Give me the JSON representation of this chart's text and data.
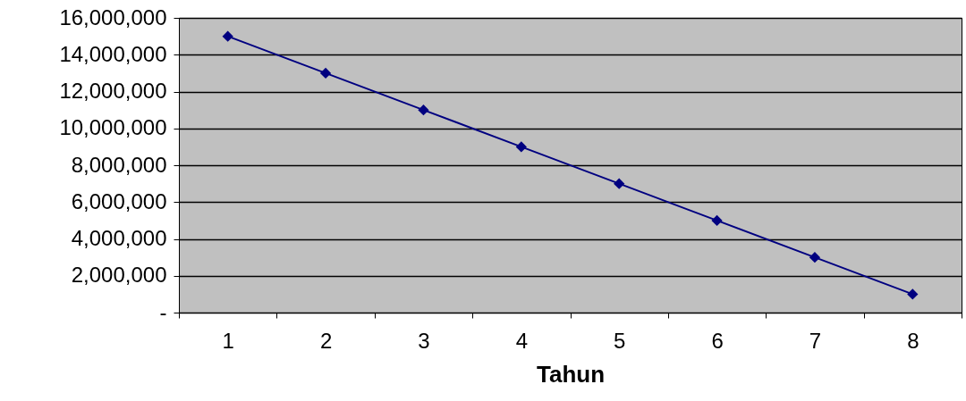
{
  "chart_data": {
    "type": "line",
    "xlabel": "Tahun",
    "categories": [
      "1",
      "2",
      "3",
      "4",
      "5",
      "6",
      "7",
      "8"
    ],
    "series": [
      {
        "color": "#000080",
        "values": [
          15000000,
          13000000,
          11000000,
          9000000,
          7000000,
          5000000,
          3000000,
          1000000
        ]
      }
    ],
    "ylim": [
      0,
      16000000
    ],
    "yticks": [
      {
        "value": 0,
        "label": "-"
      },
      {
        "value": 2000000,
        "label": "2,000,000"
      },
      {
        "value": 4000000,
        "label": "4,000,000"
      },
      {
        "value": 6000000,
        "label": "6,000,000"
      },
      {
        "value": 8000000,
        "label": "8,000,000"
      },
      {
        "value": 10000000,
        "label": "10,000,000"
      },
      {
        "value": 12000000,
        "label": "12,000,000"
      },
      {
        "value": 14000000,
        "label": "14,000,000"
      },
      {
        "value": 16000000,
        "label": "16,000,000"
      }
    ],
    "grid": "y",
    "marker": "diamond",
    "line_style": "solid"
  }
}
